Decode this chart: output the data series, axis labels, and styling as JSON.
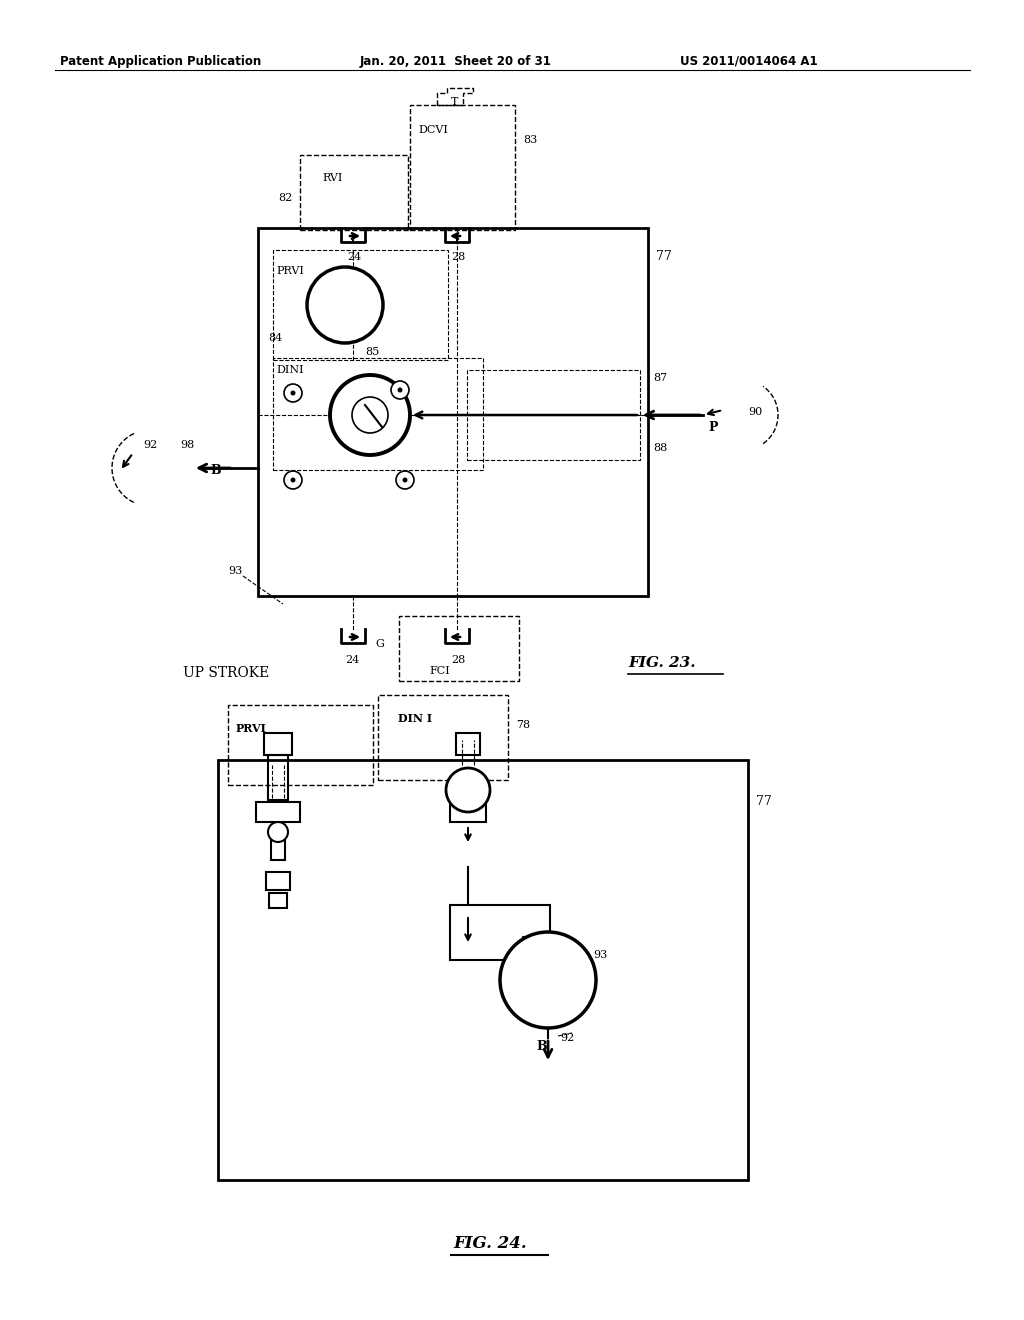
{
  "bg_color": "#ffffff",
  "header_left": "Patent Application Publication",
  "header_mid": "Jan. 20, 2011  Sheet 20 of 31",
  "header_right": "US 2011/0014064 A1",
  "fig23_title": "FIG. 23.",
  "fig23_label": "UP STROKE",
  "fig24_title": "FIG. 24.",
  "text_color": "#000000"
}
